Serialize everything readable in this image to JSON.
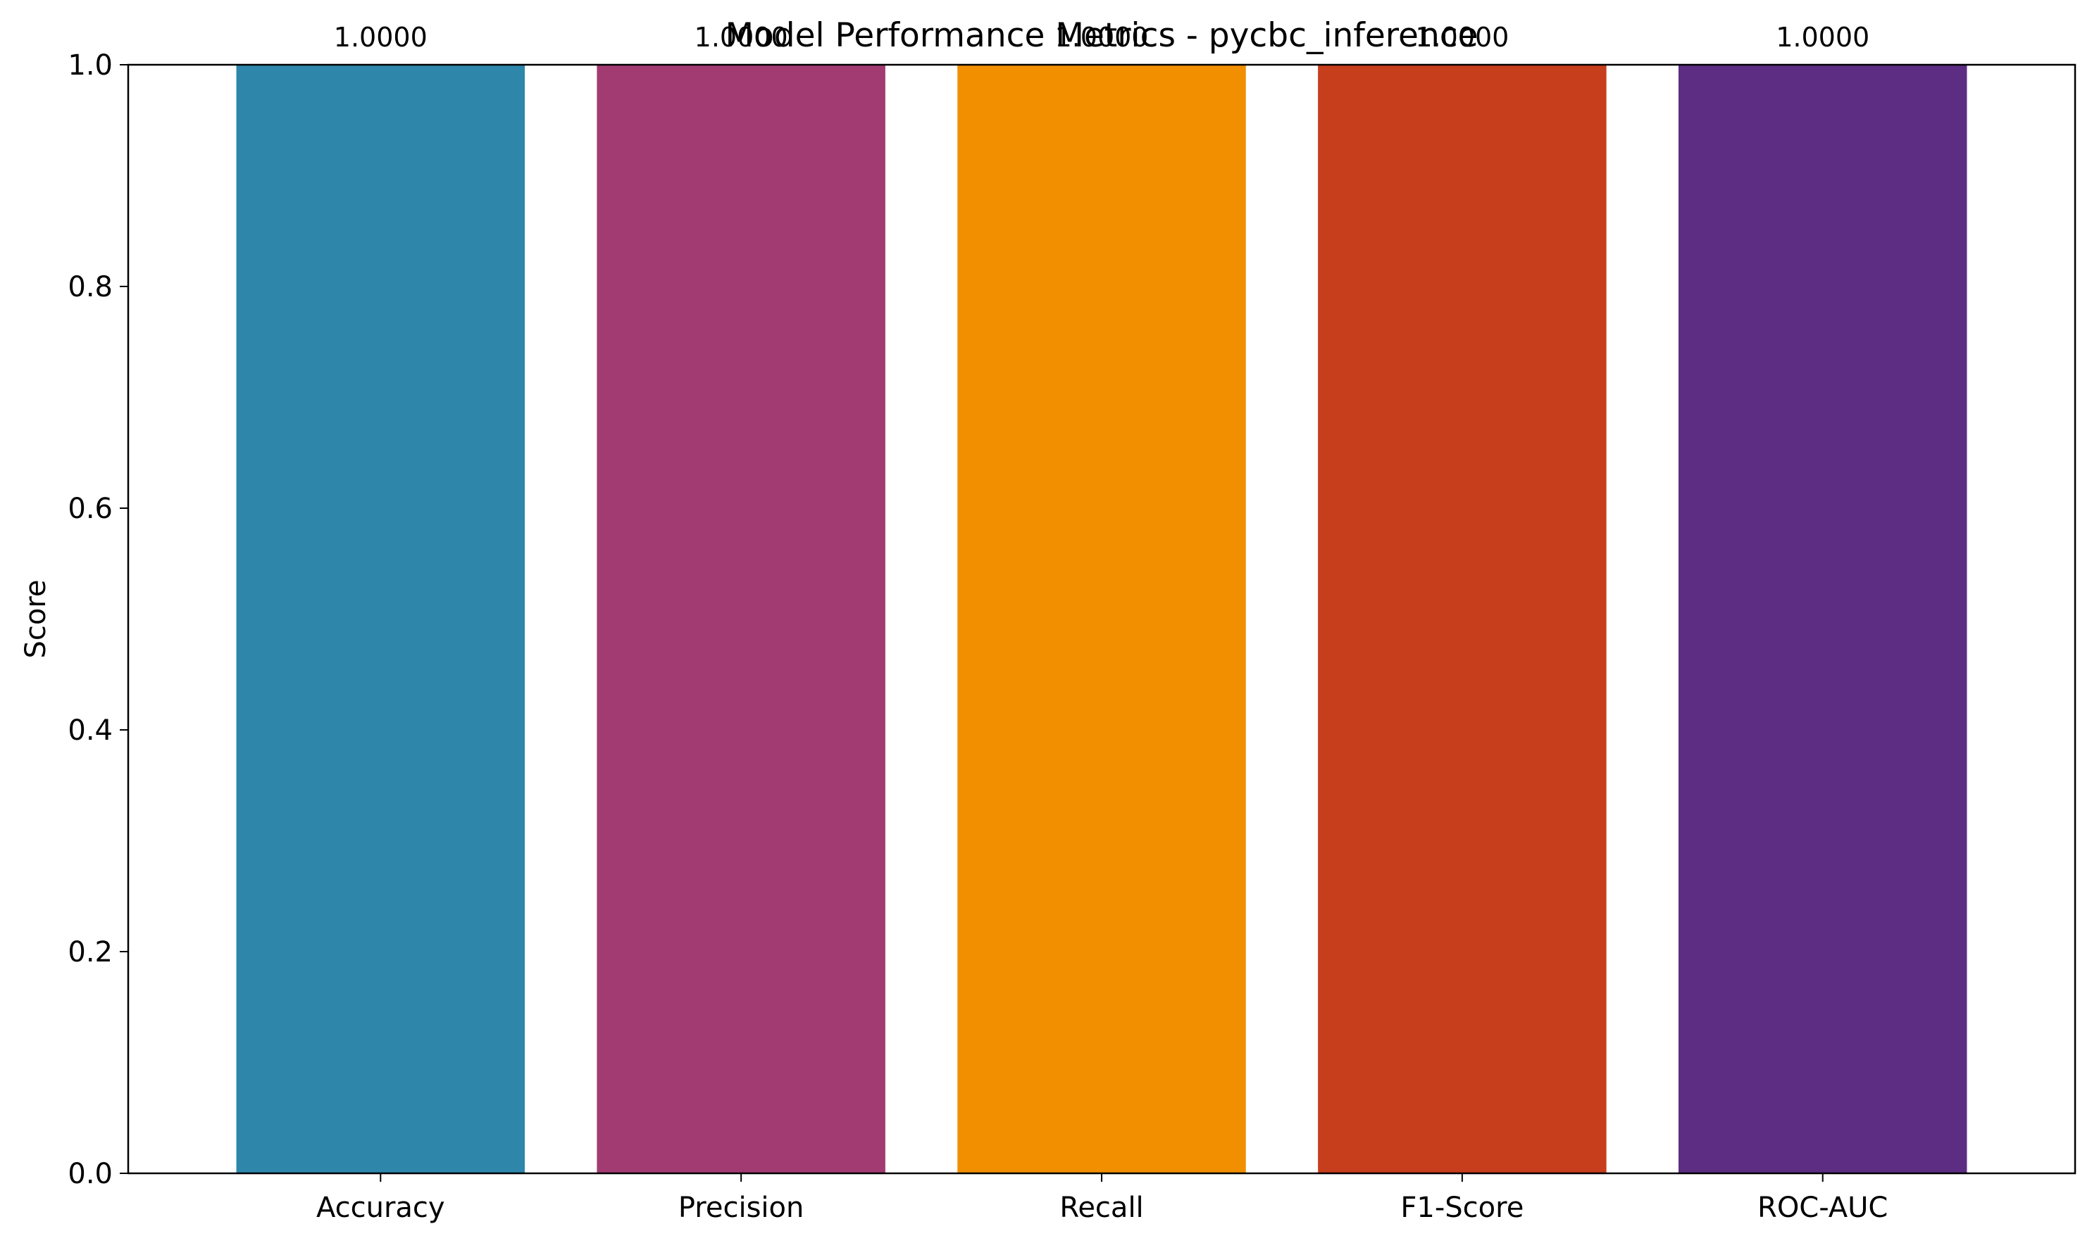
{
  "chart_data": {
    "type": "bar",
    "title": "Model Performance Metrics - pycbc_inference",
    "xlabel": "",
    "ylabel": "Score",
    "categories": [
      "Accuracy",
      "Precision",
      "Recall",
      "F1-Score",
      "ROC-AUC"
    ],
    "values": [
      1.0,
      1.0,
      1.0,
      1.0,
      1.0
    ],
    "value_labels": [
      "1.0000",
      "1.0000",
      "1.0000",
      "1.0000",
      "1.0000"
    ],
    "colors": [
      "#2E86AB",
      "#A23B72",
      "#F18F01",
      "#C73E1D",
      "#5C2D82"
    ],
    "ylim": [
      0,
      1.0
    ],
    "yticks": [
      0.0,
      0.2,
      0.4,
      0.6,
      0.8,
      1.0
    ],
    "ytick_labels": [
      "0.0",
      "0.2",
      "0.4",
      "0.6",
      "0.8",
      "1.0"
    ],
    "grid": false,
    "legend": "none"
  }
}
